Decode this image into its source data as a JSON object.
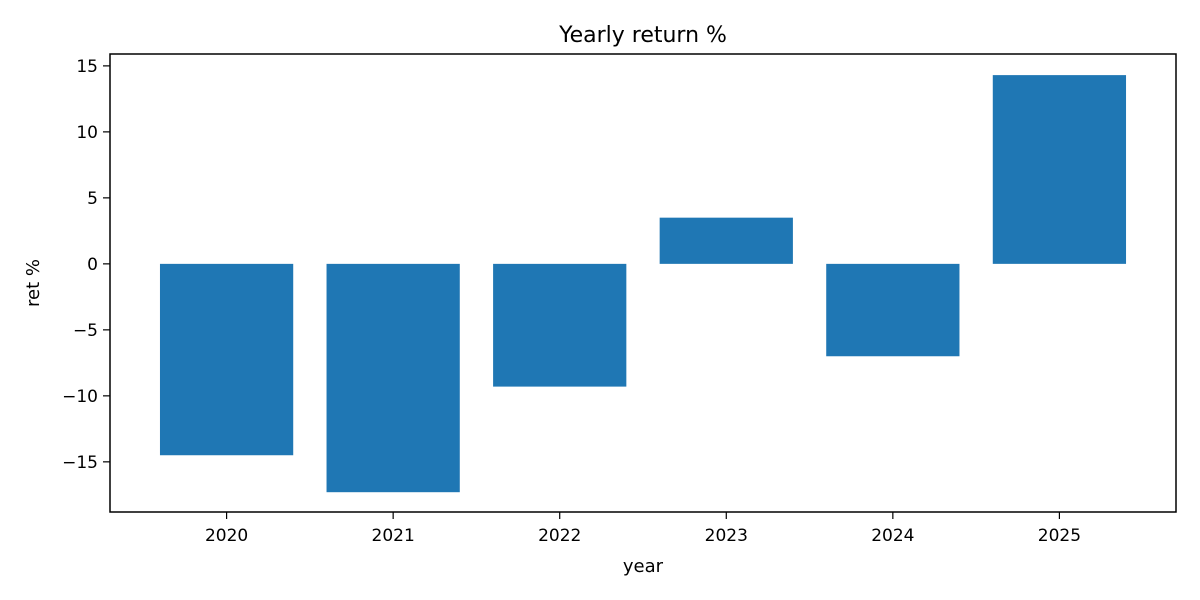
{
  "chart_data": {
    "type": "bar",
    "title": "Yearly return %",
    "xlabel": "year",
    "ylabel": "ret %",
    "categories": [
      "2020",
      "2021",
      "2022",
      "2023",
      "2024",
      "2025"
    ],
    "values": [
      -14.5,
      -17.3,
      -9.3,
      3.5,
      -7.0,
      14.3
    ],
    "ylim": [
      -18.8,
      15.9
    ],
    "yticks": [
      -15,
      -10,
      -5,
      0,
      5,
      10,
      15
    ],
    "ytick_labels": [
      "−15",
      "−10",
      "−5",
      "0",
      "5",
      "10",
      "15"
    ],
    "bar_color": "#1f77b4",
    "grid": false,
    "legend": "none"
  }
}
